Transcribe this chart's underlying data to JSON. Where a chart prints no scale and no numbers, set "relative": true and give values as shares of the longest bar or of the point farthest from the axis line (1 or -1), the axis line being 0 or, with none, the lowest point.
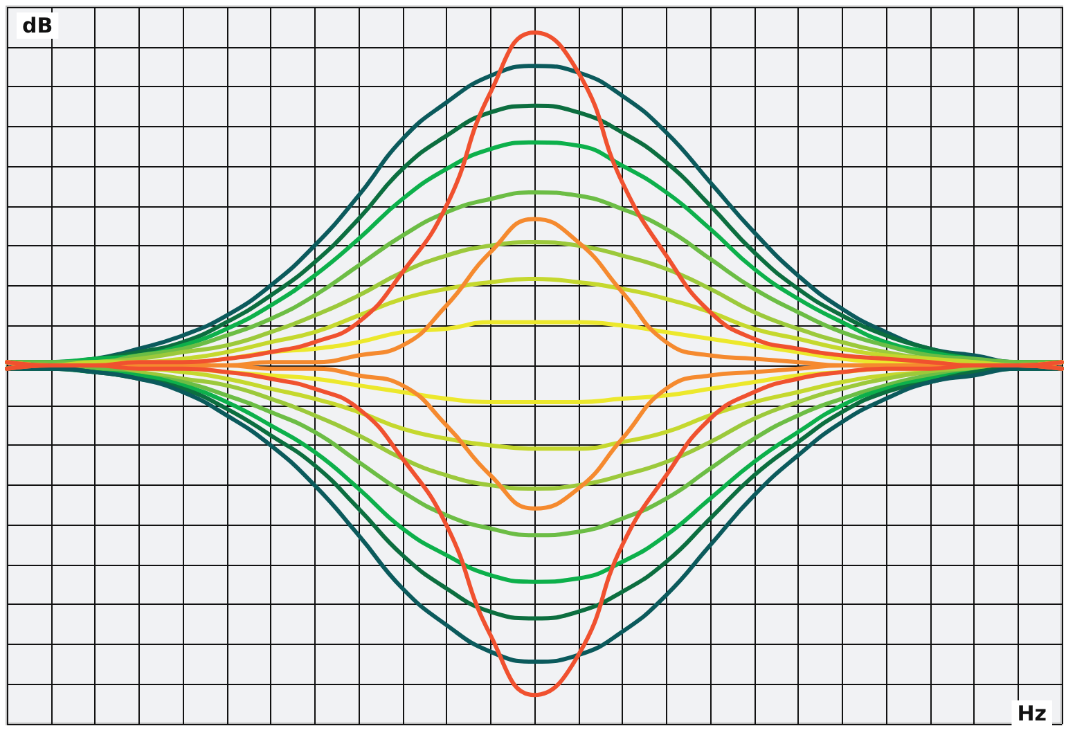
{
  "chart_data": {
    "type": "line",
    "xlabel": "Hz",
    "ylabel": "dB",
    "relative": true,
    "grid": true,
    "categories": [
      null,
      null,
      null,
      null,
      null,
      null,
      null,
      null,
      null,
      null,
      null,
      null,
      null,
      null,
      null,
      null,
      null,
      null,
      null,
      null,
      null,
      null,
      null,
      null,
      null
    ],
    "series": [
      {
        "color": "#0b5a5c",
        "values": [
          0.01,
          0.01,
          0.02,
          0.05,
          0.09,
          0.15,
          0.24,
          0.36,
          0.51,
          0.68,
          0.79,
          0.87,
          0.9,
          0.88,
          0.81,
          0.7,
          0.55,
          0.4,
          0.27,
          0.17,
          0.1,
          0.05,
          0.03,
          0.01,
          0.01
        ]
      },
      {
        "color": "#0c6e3f",
        "values": [
          0.01,
          0.01,
          0.02,
          0.04,
          0.07,
          0.13,
          0.21,
          0.31,
          0.44,
          0.59,
          0.69,
          0.76,
          0.78,
          0.76,
          0.7,
          0.61,
          0.48,
          0.34,
          0.23,
          0.15,
          0.09,
          0.05,
          0.02,
          0.01,
          0.01
        ]
      },
      {
        "color": "#0db04b",
        "values": [
          0.01,
          0.01,
          0.02,
          0.03,
          0.06,
          0.11,
          0.18,
          0.27,
          0.38,
          0.5,
          0.59,
          0.65,
          0.67,
          0.66,
          0.6,
          0.52,
          0.41,
          0.29,
          0.2,
          0.13,
          0.07,
          0.04,
          0.02,
          0.01,
          0.01
        ]
      },
      {
        "color": "#6cbd45",
        "values": [
          0.01,
          0.01,
          0.01,
          0.03,
          0.05,
          0.09,
          0.14,
          0.21,
          0.3,
          0.39,
          0.46,
          0.5,
          0.52,
          0.51,
          0.47,
          0.41,
          0.32,
          0.23,
          0.16,
          0.1,
          0.06,
          0.03,
          0.02,
          0.01,
          0.01
        ]
      },
      {
        "color": "#9cc93b",
        "values": [
          0.01,
          0,
          0.01,
          0.02,
          0.04,
          0.06,
          0.1,
          0.15,
          0.21,
          0.28,
          0.33,
          0.36,
          0.37,
          0.36,
          0.33,
          0.29,
          0.23,
          0.16,
          0.11,
          0.07,
          0.04,
          0.02,
          0.01,
          0,
          0.01
        ]
      },
      {
        "color": "#c5d82e",
        "values": [
          0.01,
          0,
          0.01,
          0.01,
          0.02,
          0.04,
          0.07,
          0.1,
          0.15,
          0.2,
          0.23,
          0.25,
          0.26,
          0.25,
          0.23,
          0.2,
          0.16,
          0.11,
          0.08,
          0.05,
          0.03,
          0.02,
          0.01,
          0,
          0.01
        ]
      },
      {
        "color": "#ece82c",
        "values": [
          0.01,
          0,
          0,
          0.01,
          0.01,
          0.02,
          0.04,
          0.05,
          0.07,
          0.1,
          0.11,
          0.13,
          0.13,
          0.13,
          0.12,
          0.1,
          0.08,
          0.06,
          0.04,
          0.02,
          0.01,
          0.01,
          0,
          0,
          0.01
        ]
      },
      {
        "color": "#ece82c",
        "values": [
          -0.01,
          0,
          0,
          -0.01,
          -0.01,
          -0.02,
          -0.03,
          -0.04,
          -0.06,
          -0.08,
          -0.1,
          -0.11,
          -0.11,
          -0.11,
          -0.1,
          -0.09,
          -0.07,
          -0.05,
          -0.03,
          -0.02,
          -0.01,
          -0.01,
          0,
          0,
          -0.01
        ]
      },
      {
        "color": "#c5d82e",
        "values": [
          -0.01,
          0,
          -0.01,
          -0.01,
          -0.02,
          -0.04,
          -0.07,
          -0.1,
          -0.14,
          -0.19,
          -0.22,
          -0.24,
          -0.25,
          -0.25,
          -0.23,
          -0.2,
          -0.15,
          -0.11,
          -0.08,
          -0.05,
          -0.03,
          -0.02,
          -0.01,
          0,
          -0.01
        ]
      },
      {
        "color": "#9cc93b",
        "values": [
          -0.01,
          0,
          -0.01,
          -0.02,
          -0.04,
          -0.06,
          -0.1,
          -0.15,
          -0.21,
          -0.28,
          -0.33,
          -0.36,
          -0.37,
          -0.36,
          -0.33,
          -0.29,
          -0.23,
          -0.16,
          -0.11,
          -0.07,
          -0.04,
          -0.02,
          -0.01,
          0,
          -0.01
        ]
      },
      {
        "color": "#6cbd45",
        "values": [
          -0.01,
          -0.01,
          -0.01,
          -0.03,
          -0.05,
          -0.09,
          -0.14,
          -0.2,
          -0.29,
          -0.38,
          -0.45,
          -0.49,
          -0.51,
          -0.5,
          -0.46,
          -0.4,
          -0.31,
          -0.22,
          -0.15,
          -0.1,
          -0.06,
          -0.03,
          -0.02,
          -0.01,
          -0.01
        ]
      },
      {
        "color": "#0db04b",
        "values": [
          -0.01,
          -0.01,
          -0.02,
          -0.03,
          -0.06,
          -0.11,
          -0.18,
          -0.26,
          -0.37,
          -0.49,
          -0.57,
          -0.63,
          -0.65,
          -0.64,
          -0.59,
          -0.51,
          -0.4,
          -0.29,
          -0.2,
          -0.12,
          -0.07,
          -0.04,
          -0.02,
          -0.01,
          -0.01
        ]
      },
      {
        "color": "#0c6e3f",
        "values": [
          -0.01,
          -0.01,
          -0.02,
          -0.04,
          -0.07,
          -0.13,
          -0.21,
          -0.3,
          -0.43,
          -0.57,
          -0.67,
          -0.74,
          -0.76,
          -0.74,
          -0.68,
          -0.59,
          -0.46,
          -0.33,
          -0.23,
          -0.14,
          -0.08,
          -0.05,
          -0.02,
          -0.01,
          -0.01
        ]
      },
      {
        "color": "#0b5a5c",
        "values": [
          -0.01,
          -0.01,
          -0.02,
          -0.04,
          -0.08,
          -0.15,
          -0.24,
          -0.36,
          -0.51,
          -0.67,
          -0.78,
          -0.86,
          -0.89,
          -0.87,
          -0.8,
          -0.69,
          -0.54,
          -0.39,
          -0.27,
          -0.17,
          -0.1,
          -0.05,
          -0.03,
          -0.01,
          -0.01
        ]
      },
      {
        "color": "#f58a2f",
        "values": [
          0.01,
          0,
          0,
          0,
          0,
          0,
          0.01,
          0.01,
          0.03,
          0.06,
          0.18,
          0.34,
          0.44,
          0.37,
          0.22,
          0.07,
          0.03,
          0.02,
          0.01,
          0,
          0,
          0,
          0,
          0,
          0.01
        ]
      },
      {
        "color": "#f58a2f",
        "values": [
          -0.01,
          0,
          0,
          0,
          0,
          0,
          -0.01,
          -0.01,
          -0.03,
          -0.06,
          -0.18,
          -0.33,
          -0.43,
          -0.37,
          -0.22,
          -0.07,
          -0.03,
          -0.02,
          -0.01,
          0,
          0,
          0,
          0,
          0,
          -0.01
        ]
      },
      {
        "color": "#f0512f",
        "values": [
          0.01,
          0,
          0,
          0.01,
          0.01,
          0.02,
          0.04,
          0.07,
          0.13,
          0.28,
          0.48,
          0.82,
          1.0,
          0.88,
          0.55,
          0.33,
          0.16,
          0.08,
          0.05,
          0.03,
          0.02,
          0.01,
          0,
          0,
          0.01
        ]
      },
      {
        "color": "#f0512f",
        "values": [
          -0.01,
          0,
          0,
          -0.01,
          -0.01,
          -0.02,
          -0.04,
          -0.07,
          -0.13,
          -0.28,
          -0.48,
          -0.81,
          -0.99,
          -0.87,
          -0.54,
          -0.33,
          -0.16,
          -0.08,
          -0.04,
          -0.02,
          -0.01,
          -0.01,
          0,
          0,
          -0.01
        ]
      }
    ]
  }
}
